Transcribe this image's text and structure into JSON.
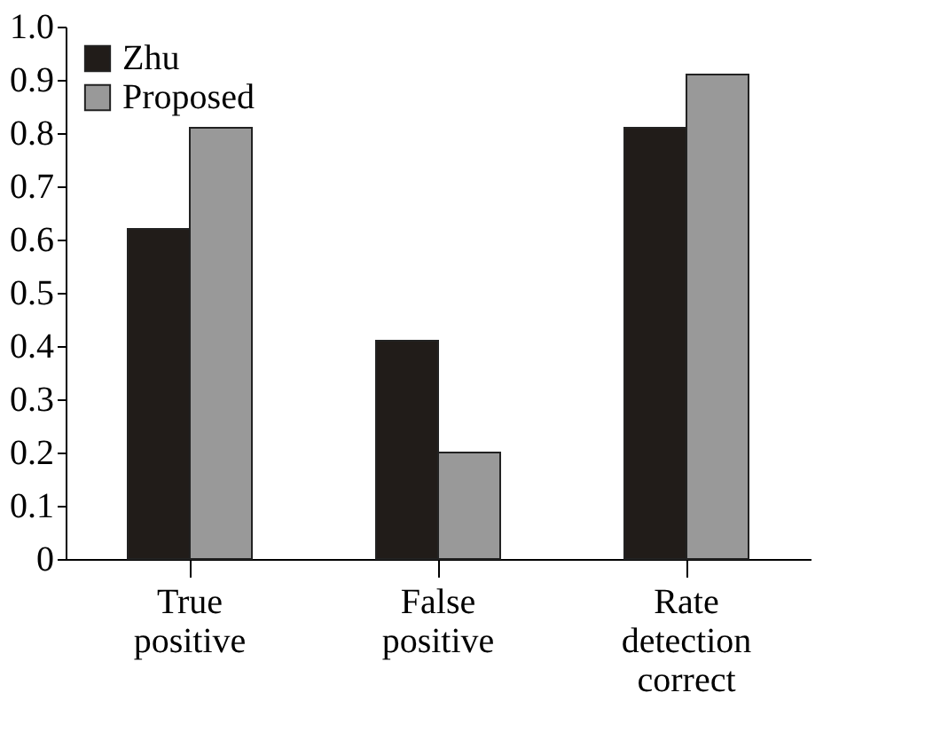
{
  "chart_data": {
    "type": "bar",
    "categories": [
      "True positive",
      "False positive",
      "Rate detection correct"
    ],
    "series": [
      {
        "name": "Zhu",
        "color": "#211c19",
        "values": [
          0.62,
          0.41,
          0.81
        ]
      },
      {
        "name": "Proposed",
        "color": "#999999",
        "values": [
          0.81,
          0.2,
          0.91
        ]
      }
    ],
    "ylim": [
      0,
      1.0
    ],
    "yticks": [
      0,
      0.1,
      0.2,
      0.3,
      0.4,
      0.5,
      0.6,
      0.7,
      0.8,
      0.9,
      {
        "value": 1.0,
        "label": "1.0"
      }
    ],
    "grid": false,
    "legend": "top left"
  }
}
